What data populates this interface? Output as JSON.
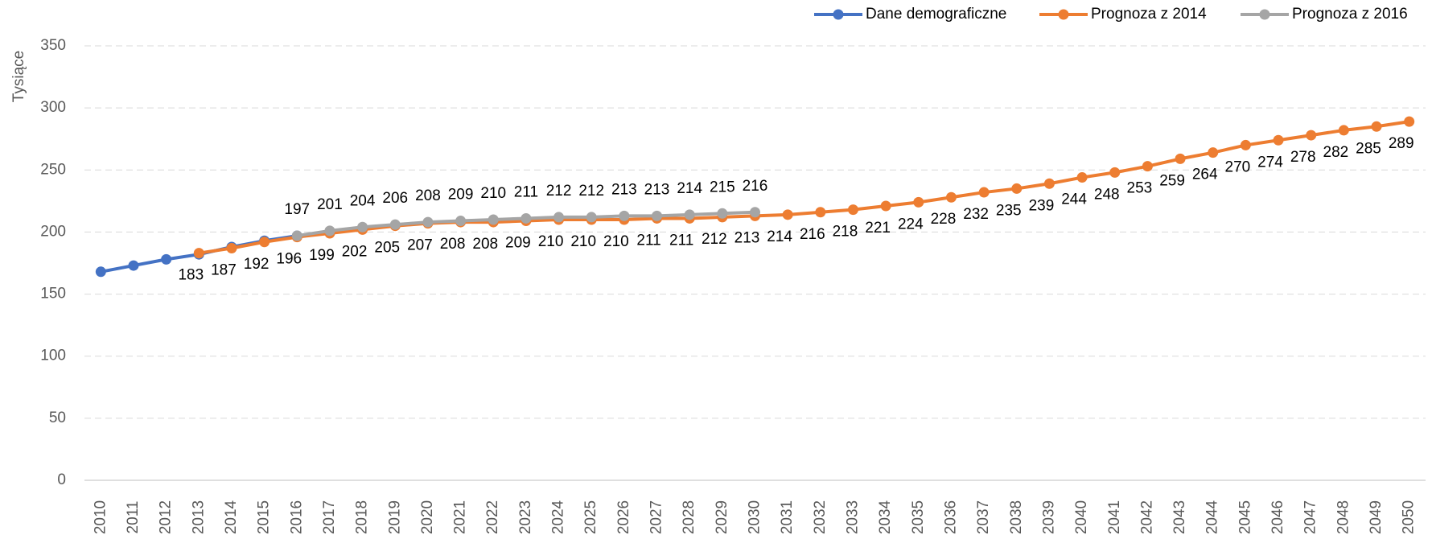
{
  "chart_data": {
    "type": "line",
    "y_label": "Tysiące",
    "categories": [
      "2010",
      "2011",
      "2012",
      "2013",
      "2014",
      "2015",
      "2016",
      "2017",
      "2018",
      "2019",
      "2020",
      "2021",
      "2022",
      "2023",
      "2024",
      "2025",
      "2026",
      "2027",
      "2028",
      "2029",
      "2030",
      "2031",
      "2032",
      "2033",
      "2034",
      "2035",
      "2036",
      "2037",
      "2038",
      "2039",
      "2040",
      "2041",
      "2042",
      "2043",
      "2044",
      "2045",
      "2046",
      "2047",
      "2048",
      "2049",
      "2050"
    ],
    "series": [
      {
        "name": "Dane demograficzne",
        "color": "#4472c4",
        "labels": "none",
        "values": [
          168,
          173,
          178,
          182,
          188,
          193,
          197,
          null,
          null,
          null,
          null,
          null,
          null,
          null,
          null,
          null,
          null,
          null,
          null,
          null,
          null,
          null,
          null,
          null,
          null,
          null,
          null,
          null,
          null,
          null,
          null,
          null,
          null,
          null,
          null,
          null,
          null,
          null,
          null,
          null,
          null
        ]
      },
      {
        "name": "Prognoza z 2014",
        "color": "#ed7d31",
        "labels": "below",
        "values": [
          null,
          null,
          null,
          183,
          187,
          192,
          196,
          199,
          202,
          205,
          207,
          208,
          208,
          209,
          210,
          210,
          210,
          211,
          211,
          212,
          213,
          214,
          216,
          218,
          221,
          224,
          228,
          232,
          235,
          239,
          244,
          248,
          253,
          259,
          264,
          270,
          274,
          278,
          282,
          285,
          289
        ]
      },
      {
        "name": "Prognoza z 2016",
        "color": "#a5a5a5",
        "labels": "above",
        "values": [
          null,
          null,
          null,
          null,
          null,
          null,
          197,
          201,
          204,
          206,
          208,
          209,
          210,
          211,
          212,
          212,
          213,
          213,
          214,
          215,
          216,
          null,
          null,
          null,
          null,
          null,
          null,
          null,
          null,
          null,
          null,
          null,
          null,
          null,
          null,
          null,
          null,
          null,
          null,
          null,
          null
        ]
      }
    ],
    "ylim": [
      0,
      350
    ],
    "yticks": [
      0,
      50,
      100,
      150,
      200,
      250,
      300,
      350
    ],
    "grid": true,
    "legend": "top-right"
  }
}
